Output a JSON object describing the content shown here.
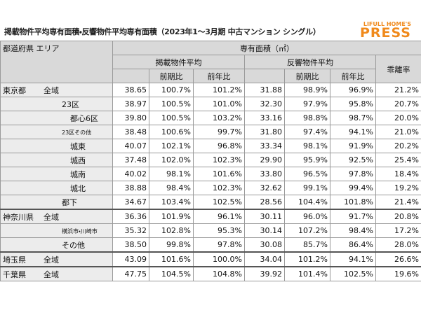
{
  "header": {
    "title": "掲載物件平均専有面積・反響物件平均専有面積（2023年1～3月期 中古マンション シングル）",
    "logo_top": "LIFULL HOME'S",
    "logo_bottom": "PRESS"
  },
  "table": {
    "head": {
      "area": "都道府県 エリア",
      "group": "専有面積（㎡）",
      "listed": "掲載物件平均",
      "inquired": "反響物件平均",
      "gap": "乖離率",
      "qoq": "前期比",
      "yoy": "前年比"
    },
    "rows": [
      {
        "prefecture": "東京都",
        "area": "全域",
        "values": [
          "38.65",
          "100.7%",
          "101.2%",
          "31.88",
          "98.9%",
          "96.9%",
          "21.2%"
        ]
      },
      {
        "area": "23区",
        "values": [
          "38.97",
          "100.5%",
          "101.0%",
          "32.30",
          "97.9%",
          "95.8%",
          "20.7%"
        ]
      },
      {
        "area": "都心6区",
        "values": [
          "39.80",
          "100.5%",
          "103.2%",
          "33.16",
          "98.8%",
          "98.7%",
          "20.0%"
        ]
      },
      {
        "area": "23区その他",
        "values": [
          "38.48",
          "100.6%",
          "99.7%",
          "31.80",
          "97.4%",
          "94.1%",
          "21.0%"
        ]
      },
      {
        "area": "城東",
        "values": [
          "40.07",
          "102.1%",
          "96.8%",
          "33.34",
          "98.1%",
          "91.9%",
          "20.2%"
        ]
      },
      {
        "area": "城西",
        "values": [
          "37.48",
          "102.0%",
          "102.3%",
          "29.90",
          "95.9%",
          "92.5%",
          "25.4%"
        ]
      },
      {
        "area": "城南",
        "values": [
          "40.02",
          "98.1%",
          "101.6%",
          "33.80",
          "96.5%",
          "97.8%",
          "18.4%"
        ]
      },
      {
        "area": "城北",
        "values": [
          "38.88",
          "98.4%",
          "102.3%",
          "32.62",
          "99.1%",
          "99.4%",
          "19.2%"
        ]
      },
      {
        "area": "都下",
        "values": [
          "34.67",
          "103.4%",
          "102.5%",
          "28.56",
          "104.4%",
          "101.8%",
          "21.4%"
        ]
      },
      {
        "prefecture": "神奈川県",
        "area": "全域",
        "values": [
          "36.36",
          "101.9%",
          "96.1%",
          "30.11",
          "96.0%",
          "91.7%",
          "20.8%"
        ]
      },
      {
        "area": "横浜市・川崎市",
        "values": [
          "35.32",
          "102.8%",
          "95.3%",
          "30.14",
          "107.2%",
          "98.4%",
          "17.2%"
        ]
      },
      {
        "area": "その他",
        "values": [
          "38.50",
          "99.8%",
          "97.8%",
          "30.08",
          "85.7%",
          "86.4%",
          "28.0%"
        ]
      },
      {
        "prefecture": "埼玉県",
        "area": "全域",
        "values": [
          "43.09",
          "101.6%",
          "100.0%",
          "34.04",
          "101.2%",
          "94.1%",
          "26.6%"
        ]
      },
      {
        "prefecture": "千葉県",
        "area": "全域",
        "values": [
          "47.75",
          "104.5%",
          "104.8%",
          "39.92",
          "101.4%",
          "102.5%",
          "19.6%"
        ]
      }
    ]
  }
}
